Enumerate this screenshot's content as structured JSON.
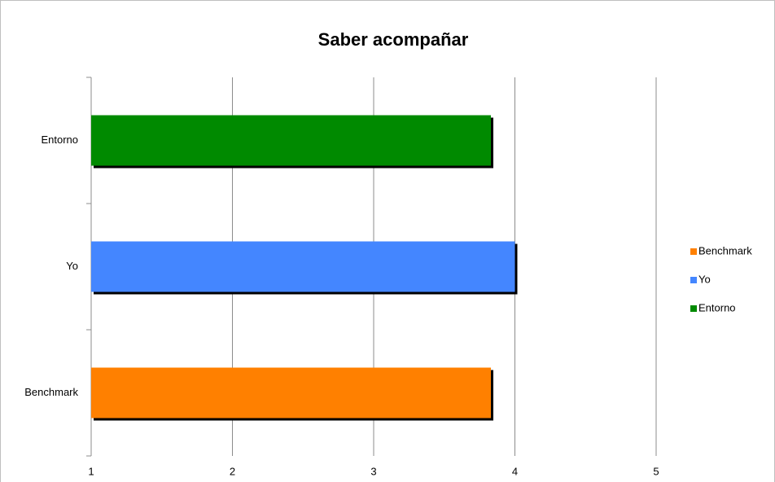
{
  "chart_data": {
    "type": "bar",
    "orientation": "horizontal",
    "title": "Saber acompañar",
    "categories": [
      "Benchmark",
      "Yo",
      "Entorno"
    ],
    "values": [
      3.83,
      4.0,
      3.83
    ],
    "colors": [
      "#ff8000",
      "#4486ff",
      "#008a00"
    ],
    "xlim": [
      1,
      5
    ],
    "xticks": [
      1,
      2,
      3,
      4,
      5
    ],
    "grid": true,
    "legend": "right"
  }
}
